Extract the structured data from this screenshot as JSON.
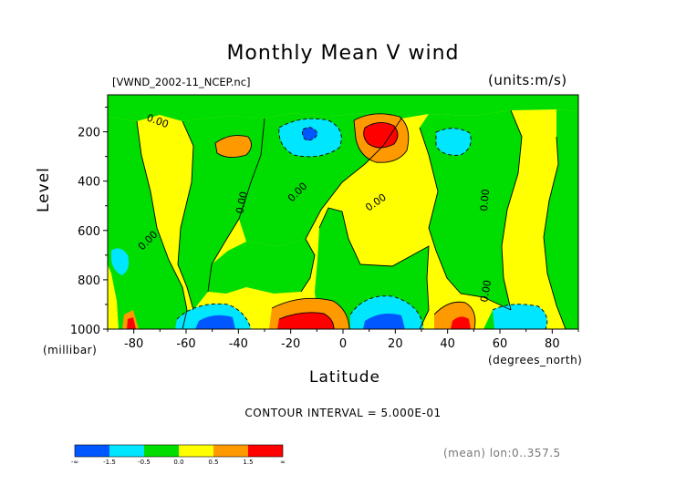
{
  "chart_data": {
    "type": "heatmap",
    "title": "Monthly Mean V wind",
    "subtitle_left": "[VWND_2002-11_NCEP.nc]",
    "subtitle_right": "(units:m/s)",
    "xlabel": "Latitude",
    "x_unit": "(degrees_north)",
    "ylabel": "Level",
    "y_unit": "(millibar)",
    "xlim": [
      -90,
      90
    ],
    "ylim": [
      1000,
      50
    ],
    "y_reversed": true,
    "x_ticks": [
      -80,
      -60,
      -40,
      -20,
      0,
      20,
      40,
      60,
      80
    ],
    "x_tick_labels": [
      "-80",
      "-60",
      "-40",
      "-20",
      "0",
      "20",
      "40",
      "60",
      "80"
    ],
    "y_ticks": [
      200,
      400,
      600,
      800,
      1000
    ],
    "y_tick_labels": [
      "200",
      "400",
      "600",
      "800",
      "1000"
    ],
    "contour_interval": "CONTOUR INTERVAL = 5.000E-01",
    "mean_note": "(mean) lon:0..357.5",
    "contour_labels": [
      "0.00",
      "0.00",
      "0.00",
      "0.00",
      "0.00",
      "0.00",
      "0.00"
    ],
    "levels": {
      "breaks": [
        -1.5,
        -0.5,
        0.0,
        0.5,
        1.5
      ],
      "colors": [
        "#0057ff",
        "#00e6ff",
        "#00dd00",
        "#ffff00",
        "#ff9900",
        "#ff0000"
      ]
    },
    "legend": {
      "placement": "bottom-left",
      "labels": [
        "-∞",
        "-1.5",
        "-0.5",
        "0.0",
        "0.5",
        "1.5",
        "∞"
      ],
      "colors": [
        "#0057ff",
        "#00e6ff",
        "#00dd00",
        "#ffff00",
        "#ff9900",
        "#ff0000"
      ]
    },
    "grid": false
  }
}
